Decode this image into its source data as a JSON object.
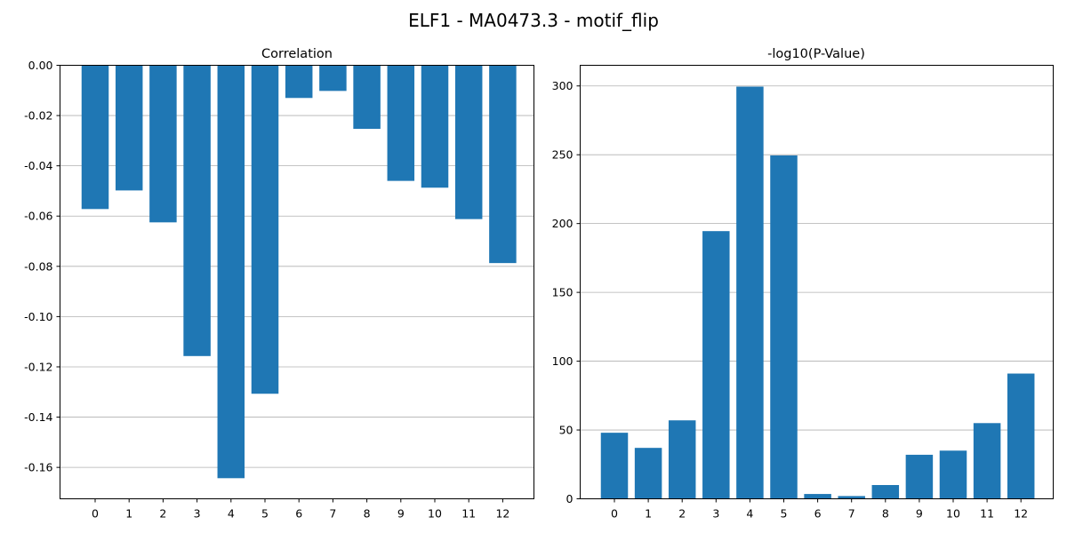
{
  "figure": {
    "title": "ELF1 - MA0473.3 - motif_flip"
  },
  "chart_data": [
    {
      "type": "bar",
      "title": "Correlation",
      "xlabel": "",
      "ylabel": "",
      "categories": [
        "0",
        "1",
        "2",
        "3",
        "4",
        "5",
        "6",
        "7",
        "8",
        "9",
        "10",
        "11",
        "12"
      ],
      "values": [
        -0.0572,
        -0.0498,
        -0.0625,
        -0.1157,
        -0.1643,
        -0.1307,
        -0.013,
        -0.0102,
        -0.0253,
        -0.046,
        -0.0487,
        -0.0612,
        -0.0787
      ],
      "ylim": [
        -0.1725,
        0.0
      ],
      "yticks": [
        "0.00",
        "-0.02",
        "-0.04",
        "-0.06",
        "-0.08",
        "-0.10",
        "-0.12",
        "-0.14",
        "-0.16"
      ],
      "ytick_values": [
        0.0,
        -0.02,
        -0.04,
        -0.06,
        -0.08,
        -0.1,
        -0.12,
        -0.14,
        -0.16
      ],
      "grid": "y",
      "color": "#1f77b4"
    },
    {
      "type": "bar",
      "title": "-log10(P-Value)",
      "xlabel": "",
      "ylabel": "",
      "categories": [
        "0",
        "1",
        "2",
        "3",
        "4",
        "5",
        "6",
        "7",
        "8",
        "9",
        "10",
        "11",
        "12"
      ],
      "values": [
        48,
        37,
        57,
        194.5,
        299.5,
        249.5,
        3.5,
        2,
        10,
        32,
        35,
        55,
        91
      ],
      "ylim": [
        0,
        315
      ],
      "yticks": [
        "0",
        "50",
        "100",
        "150",
        "200",
        "250",
        "300"
      ],
      "ytick_values": [
        0,
        50,
        100,
        150,
        200,
        250,
        300
      ],
      "grid": "y",
      "color": "#1f77b4"
    }
  ]
}
